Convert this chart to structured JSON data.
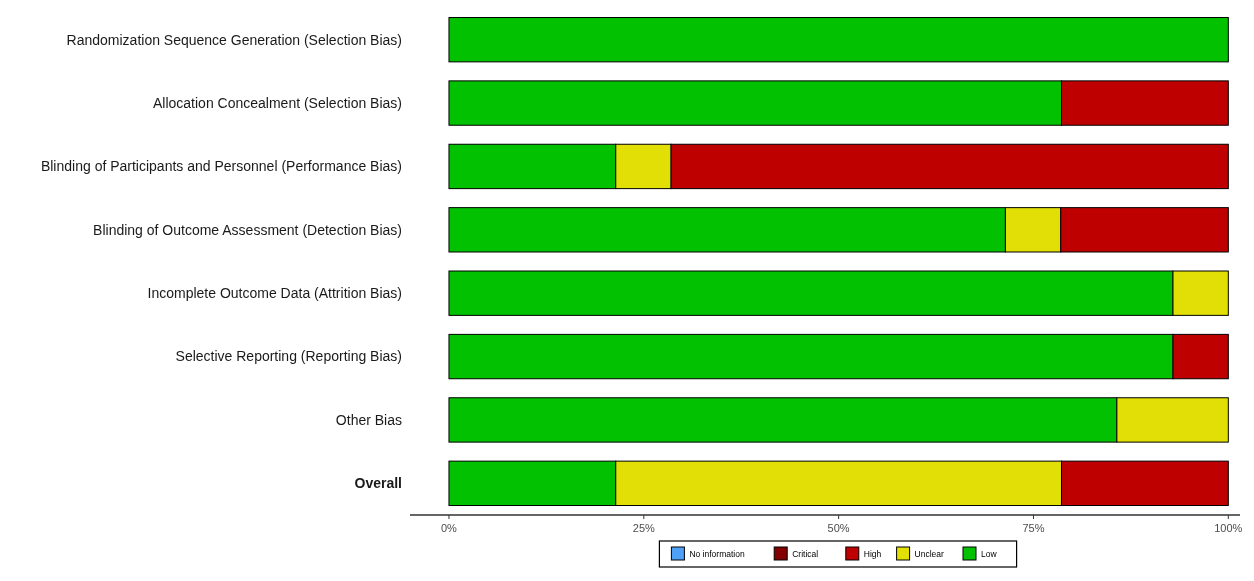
{
  "chart_data": {
    "type": "bar",
    "orientation": "horizontal",
    "stacked": true,
    "categories": [
      "Randomization Sequence Generation (Selection Bias)",
      "Allocation Concealment (Selection Bias)",
      "Blinding of Participants and Personnel (Performance Bias)",
      "Blinding of Outcome Assessment (Detection Bias)",
      "Incomplete Outcome Data (Attrition Bias)",
      "Selective Reporting (Reporting Bias)",
      "Other Bias",
      "Overall"
    ],
    "series": [
      {
        "name": "Low",
        "color": "#02c100",
        "values": [
          100,
          78.6,
          21.4,
          71.4,
          92.9,
          92.9,
          85.7,
          21.4
        ]
      },
      {
        "name": "Unclear",
        "color": "#e2df07",
        "values": [
          0,
          0,
          7.1,
          7.1,
          7.1,
          0,
          14.3,
          57.2
        ]
      },
      {
        "name": "High",
        "color": "#bf0000",
        "values": [
          0,
          21.4,
          71.5,
          21.5,
          0,
          7.1,
          0,
          21.4
        ]
      },
      {
        "name": "Critical",
        "color": "#820000",
        "values": [
          0,
          0,
          0,
          0,
          0,
          0,
          0,
          0
        ]
      },
      {
        "name": "No information",
        "color": "#4ea1f7",
        "values": [
          0,
          0,
          0,
          0,
          0,
          0,
          0,
          0
        ]
      }
    ],
    "xlim": [
      -5,
      101.5
    ],
    "xticks": [
      {
        "value": 0,
        "label": "0%"
      },
      {
        "value": 25,
        "label": "25%"
      },
      {
        "value": 50,
        "label": "50%"
      },
      {
        "value": 75,
        "label": "75%"
      },
      {
        "value": 100,
        "label": "100%"
      }
    ],
    "grid": false,
    "legend": "bottom"
  }
}
